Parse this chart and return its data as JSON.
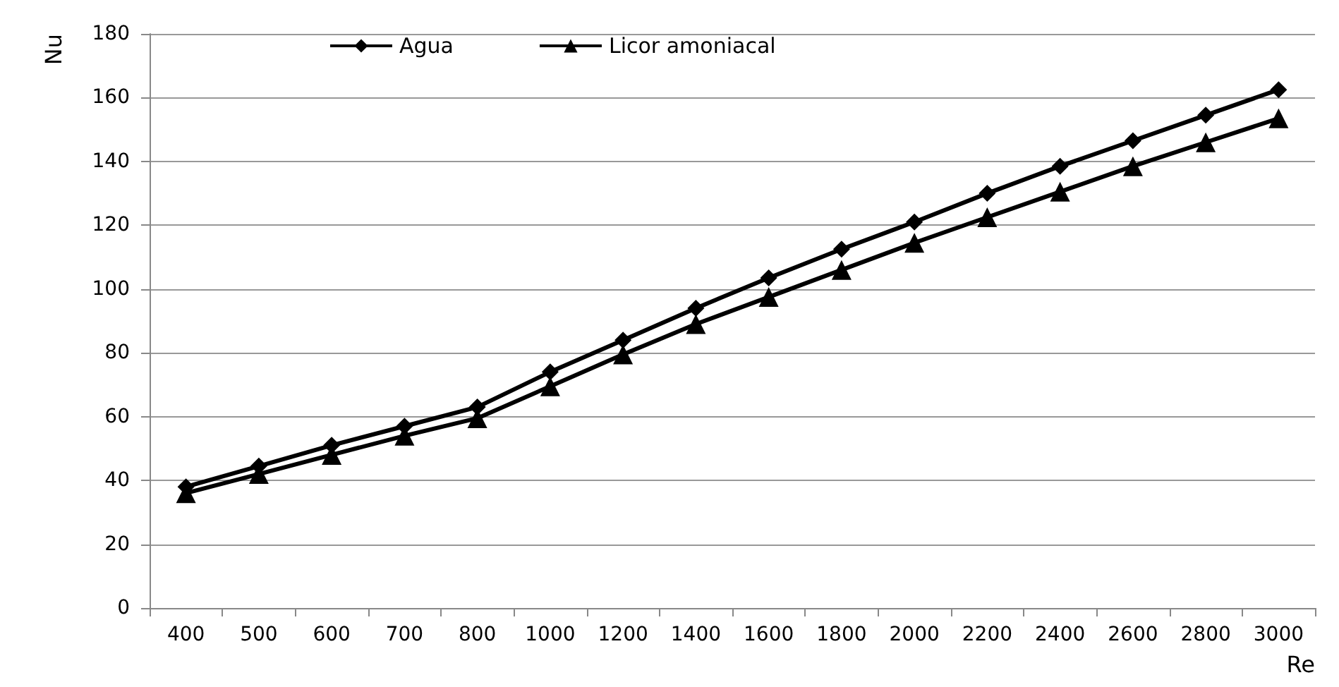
{
  "chart_data": {
    "type": "line",
    "xlabel": "Re",
    "ylabel": "Nu",
    "categories": [
      "400",
      "500",
      "600",
      "700",
      "800",
      "1000",
      "1200",
      "1400",
      "1600",
      "1800",
      "2000",
      "2200",
      "2400",
      "2600",
      "2800",
      "3000"
    ],
    "series": [
      {
        "name": "Agua",
        "color": "#000000",
        "marker": "diamond",
        "values": [
          38,
          44.5,
          51,
          57,
          63,
          74,
          84,
          94,
          103.5,
          112.5,
          121,
          130,
          138.5,
          146.5,
          154.5,
          162.5
        ]
      },
      {
        "name": "Licor amoniacal",
        "color": "#000000",
        "marker": "triangle",
        "values": [
          36,
          42,
          48,
          54,
          59.5,
          69.5,
          79.5,
          89,
          97.5,
          106,
          114.5,
          122.5,
          130.5,
          138.5,
          146,
          153.5
        ]
      }
    ],
    "ylim": [
      0,
      180
    ],
    "yticks": [
      0,
      20,
      40,
      60,
      80,
      100,
      120,
      140,
      160,
      180
    ],
    "grid": "y",
    "legend": "top",
    "line_style": "solid"
  }
}
